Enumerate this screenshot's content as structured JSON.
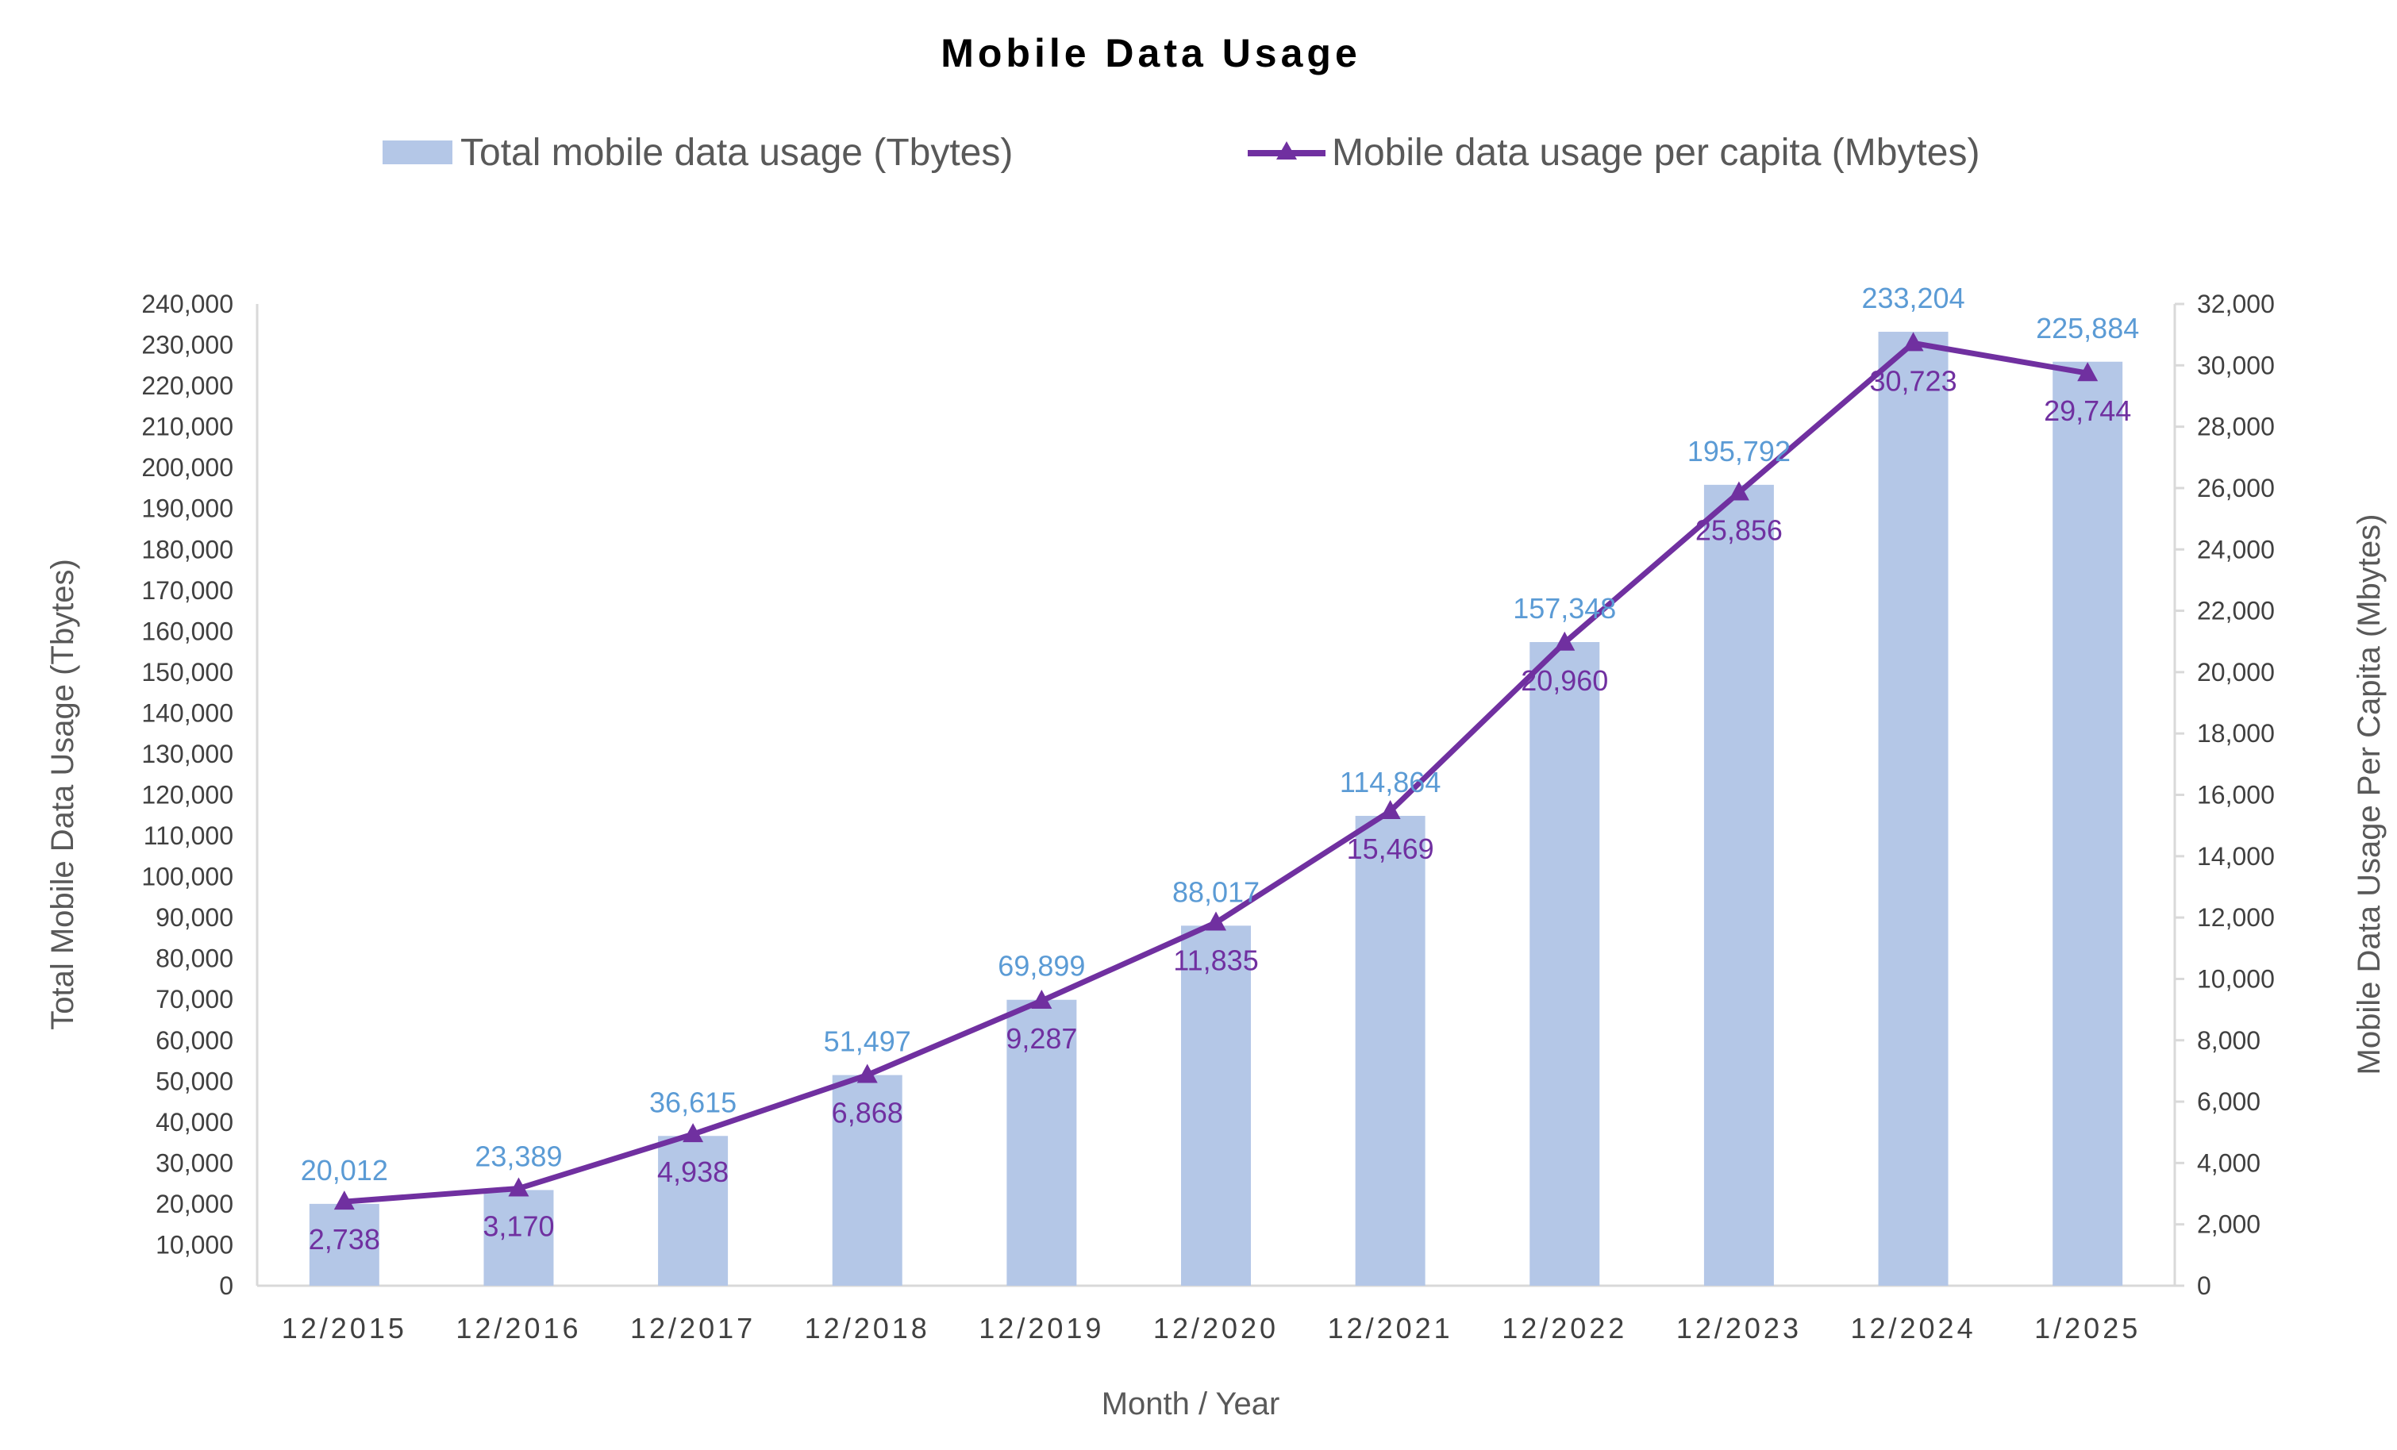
{
  "chart_data": {
    "type": "bar",
    "title": "Mobile Data Usage",
    "xlabel": "Month / Year",
    "ylabel": "Total Mobile Data Usage (Tbytes)",
    "y2label": "Mobile Data Usage Per Capita (Mbytes)",
    "categories": [
      "12/2015",
      "12/2016",
      "12/2017",
      "12/2018",
      "12/2019",
      "12/2020",
      "12/2021",
      "12/2022",
      "12/2023",
      "12/2024",
      "1/2025"
    ],
    "ylim": [
      0,
      240000
    ],
    "y2lim": [
      0,
      32000
    ],
    "yticks": [
      "0",
      "10,000",
      "20,000",
      "30,000",
      "40,000",
      "50,000",
      "60,000",
      "70,000",
      "80,000",
      "90,000",
      "100,000",
      "110,000",
      "120,000",
      "130,000",
      "140,000",
      "150,000",
      "160,000",
      "170,000",
      "180,000",
      "190,000",
      "200,000",
      "210,000",
      "220,000",
      "230,000",
      "240,000"
    ],
    "y2ticks": [
      "0",
      "2,000",
      "4,000",
      "6,000",
      "8,000",
      "10,000",
      "12,000",
      "14,000",
      "16,000",
      "18,000",
      "20,000",
      "22,000",
      "24,000",
      "26,000",
      "28,000",
      "30,000",
      "32,000"
    ],
    "grid": false,
    "legend_position": "top",
    "series": [
      {
        "name": "Total mobile data usage (Tbytes)",
        "type": "bar",
        "axis": "left",
        "color": "#b4c7e7",
        "label_color": "#5b9bd5",
        "values": [
          20012,
          23389,
          36615,
          51497,
          69899,
          88017,
          114864,
          157348,
          195792,
          233204,
          225884
        ],
        "labels": [
          "20,012",
          "23,389",
          "36,615",
          "51,497",
          "69,899",
          "88,017",
          "114,864",
          "157,348",
          "195,792",
          "233,204",
          "225,884"
        ]
      },
      {
        "name": "Mobile data usage per capita (Mbytes)",
        "type": "line",
        "axis": "right",
        "marker": "triangle",
        "color": "#7030a0",
        "label_color": "#7030a0",
        "values": [
          2738,
          3170,
          4938,
          6868,
          9287,
          11835,
          15469,
          20960,
          25856,
          30723,
          29744
        ],
        "labels": [
          "2,738",
          "3,170",
          "4,938",
          "6,868",
          "9,287",
          "11,835",
          "15,469",
          "20,960",
          "25,856",
          "30,723",
          "29,744"
        ]
      }
    ]
  }
}
